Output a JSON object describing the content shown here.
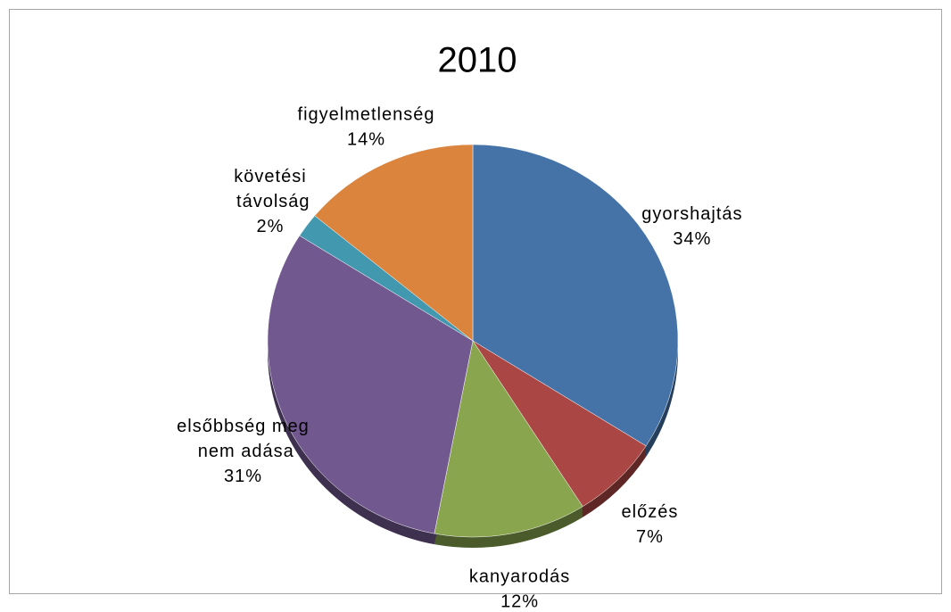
{
  "chart_data": {
    "type": "pie",
    "title": "2010",
    "categories": [
      "gyorshajtás",
      "előzés",
      "kanyarodás",
      "elsőbbség meg nem adása",
      "követési távolság",
      "figyelmetlenség"
    ],
    "values": [
      34,
      7,
      12,
      31,
      2,
      14
    ],
    "value_labels": [
      "34%",
      "7%",
      "12%",
      "31%",
      "2%",
      "14%"
    ],
    "colors": [
      "#4572a7",
      "#aa4643",
      "#89a54e",
      "#71588f",
      "#4198af",
      "#db843d"
    ]
  }
}
